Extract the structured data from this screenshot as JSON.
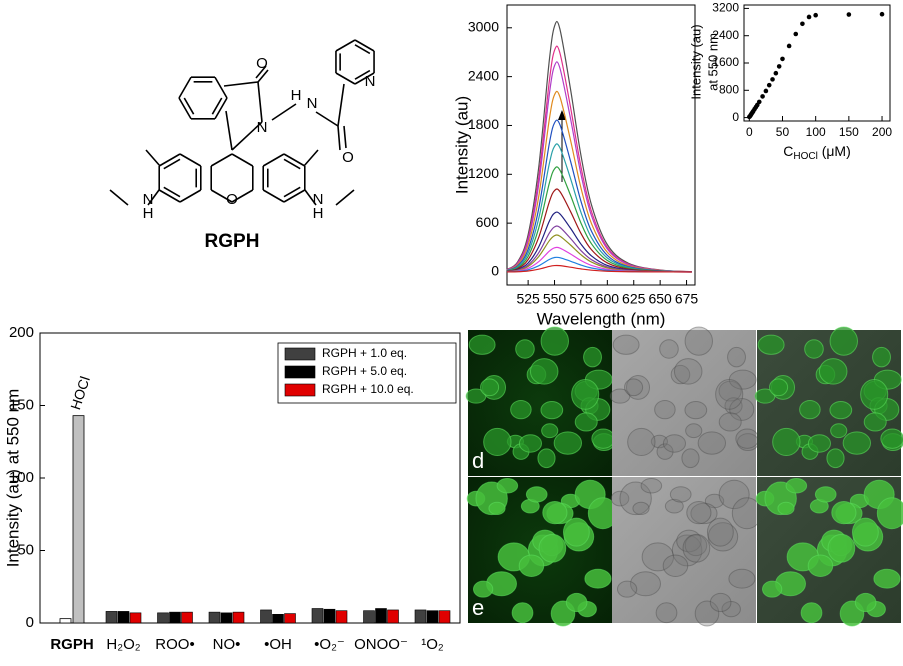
{
  "structure": {
    "name": "RGPH",
    "atoms": [
      "O",
      "N",
      "H",
      "N",
      "O",
      "N",
      "N",
      "H",
      "N",
      "H",
      "O"
    ]
  },
  "chart_data": [
    {
      "type": "line",
      "xlabel": "Wavelength (nm)",
      "ylabel": "Intensity (au)",
      "x": [
        505,
        515,
        525,
        535,
        545,
        550,
        555,
        565,
        575,
        585,
        600,
        620,
        650,
        680
      ],
      "xlim": [
        505,
        683
      ],
      "ylim": [
        -160,
        3280
      ],
      "xticks": [
        525,
        550,
        575,
        600,
        625,
        650,
        675
      ],
      "yticks": [
        0,
        600,
        1200,
        1800,
        2400,
        3000
      ],
      "series": [
        {
          "color": "#505050",
          "values": [
            31,
            122,
            458,
            1281,
            2593,
            3020,
            2989,
            2257,
            1434,
            824,
            336,
            107,
            24,
            3
          ]
        },
        {
          "color": "#e0308a",
          "values": [
            28,
            110,
            413,
            1155,
            2338,
            2723,
            2695,
            2035,
            1293,
            743,
            303,
            96,
            22,
            3
          ]
        },
        {
          "color": "#b03cc8",
          "values": [
            26,
            102,
            384,
            1075,
            2176,
            2534,
            2509,
            1894,
            1203,
            691,
            282,
            90,
            20,
            3
          ]
        },
        {
          "color": "#e08a1e",
          "values": [
            22,
            88,
            330,
            924,
            1870,
            2178,
            2156,
            1628,
            1034,
            594,
            242,
            77,
            18,
            2
          ]
        },
        {
          "color": "#2050c0",
          "values": [
            19,
            74,
            278,
            777,
            1573,
            1832,
            1813,
            1369,
            870,
            500,
            204,
            65,
            15,
            2
          ]
        },
        {
          "color": "#2aa0a8",
          "values": [
            16,
            62,
            234,
            655,
            1326,
            1544,
            1529,
            1154,
            733,
            421,
            172,
            55,
            12,
            2
          ]
        },
        {
          "color": "#30a040",
          "values": [
            13,
            51,
            192,
            538,
            1088,
            1267,
            1254,
            947,
            602,
            346,
            141,
            45,
            10,
            1
          ]
        },
        {
          "color": "#a01818",
          "values": [
            10,
            40,
            152,
            424,
            859,
            1000,
            990,
            747,
            475,
            273,
            111,
            35,
            8,
            1
          ]
        },
        {
          "color": "#202080",
          "values": [
            7,
            29,
            110,
            307,
            621,
            723,
            715,
            540,
            343,
            197,
            80,
            26,
            6,
            1
          ]
        },
        {
          "color": "#8040a0",
          "values": [
            6,
            22,
            84,
            235,
            476,
            554,
            549,
            414,
            263,
            151,
            62,
            20,
            4,
            1
          ]
        },
        {
          "color": "#909020",
          "values": [
            5,
            18,
            68,
            189,
            383,
            446,
            441,
            333,
            212,
            122,
            50,
            16,
            4,
            0
          ]
        },
        {
          "color": "#e040e0",
          "values": [
            3,
            12,
            45,
            126,
            255,
            297,
            294,
            222,
            141,
            81,
            33,
            11,
            2,
            0
          ]
        },
        {
          "color": "#2080e0",
          "values": [
            2,
            7,
            27,
            76,
            153,
            178,
            176,
            133,
            85,
            49,
            20,
            6,
            1,
            0
          ]
        },
        {
          "color": "#d02020",
          "values": [
            1,
            3,
            12,
            34,
            68,
            79,
            78,
            59,
            38,
            22,
            9,
            3,
            1,
            0
          ]
        }
      ]
    },
    {
      "type": "scatter",
      "ylabel": [
        "Intensity (au)",
        "at 550 nm"
      ],
      "xlabel": {
        "main": "C",
        "sub": "HOCl",
        "unit": " (μM)"
      },
      "color": "#000000",
      "x": [
        0,
        1,
        2,
        3,
        4,
        5,
        6,
        8,
        10,
        12,
        15,
        20,
        25,
        30,
        35,
        40,
        45,
        50,
        60,
        70,
        80,
        90,
        100,
        150,
        200
      ],
      "values": [
        20,
        40,
        70,
        100,
        130,
        160,
        190,
        250,
        310,
        370,
        460,
        620,
        780,
        950,
        1120,
        1300,
        1500,
        1720,
        2100,
        2450,
        2750,
        2950,
        3000,
        3020,
        3030
      ],
      "xlim": [
        -8,
        212
      ],
      "ylim": [
        -100,
        3300
      ],
      "xticks": [
        0,
        50,
        100,
        150,
        200
      ],
      "yticks": [
        0,
        800,
        1600,
        2400,
        3200
      ]
    },
    {
      "type": "bar",
      "ylabel": "Intensity (au) at 550 nm",
      "legend": "upper right",
      "categories": [
        "RGPH",
        "H₂O₂",
        "ROO•",
        "NO•",
        "•OH",
        "•O₂⁻",
        "ONOO⁻",
        "¹O₂"
      ],
      "ylim": [
        0,
        200
      ],
      "yticks": [
        0,
        50,
        100,
        150,
        200
      ],
      "reference": {
        "label": "HOCl",
        "values": [
          3,
          143
        ],
        "colors": [
          "#ffffff",
          "#c0c0c0"
        ]
      },
      "series": [
        {
          "name": "RGPH + 1.0 eq.",
          "color": "#404040",
          "values": [
            null,
            8,
            7,
            7.5,
            9,
            10,
            8.5,
            9
          ]
        },
        {
          "name": "RGPH + 5.0 eq.",
          "color": "#000000",
          "values": [
            null,
            8,
            7.5,
            7,
            6,
            9.5,
            10,
            8.5
          ]
        },
        {
          "name": "RGPH + 10.0 eq.",
          "color": "#e00000",
          "values": [
            null,
            7,
            7.5,
            7.5,
            6.5,
            8.5,
            9,
            8.5
          ]
        }
      ]
    }
  ],
  "micrographs": {
    "labels": [
      "d",
      "e"
    ]
  }
}
